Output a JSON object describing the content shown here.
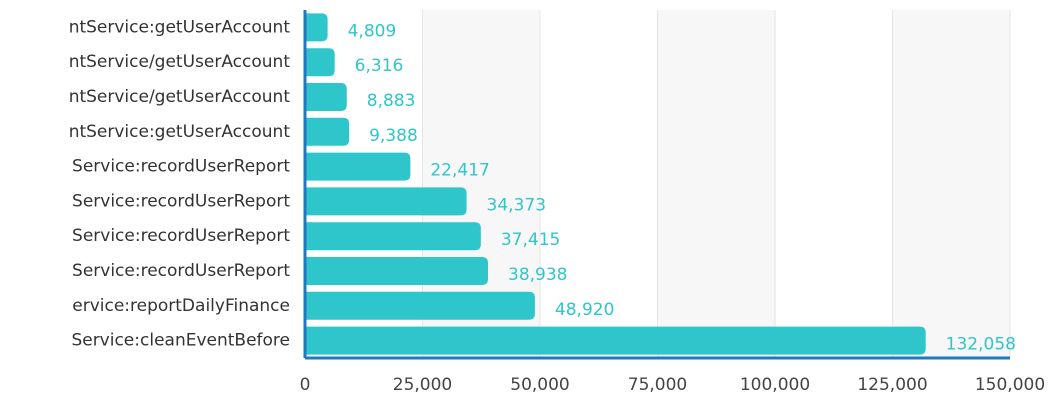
{
  "chart_data": {
    "type": "bar",
    "orientation": "horizontal",
    "categories": [
      "ntService:getUserAccount",
      "ntService/getUserAccount",
      "ntService/getUserAccount",
      "ntService:getUserAccount",
      "Service:recordUserReport",
      "Service:recordUserReport",
      "Service:recordUserReport",
      "Service:recordUserReport",
      "ervice:reportDailyFinance",
      "Service:cleanEventBefore"
    ],
    "values": [
      4809,
      6316,
      8883,
      9388,
      22417,
      34373,
      37415,
      38938,
      48920,
      132058
    ],
    "value_labels": [
      "4,809",
      "6,316",
      "8,883",
      "9,388",
      "22,417",
      "34,373",
      "37,415",
      "38,938",
      "48,920",
      "132,058"
    ],
    "color": "#2fc6cb",
    "xlim": [
      0,
      150000
    ],
    "xticks": [
      0,
      {
        "value": 25000,
        "label": "25,000"
      },
      {
        "value": 50000,
        "label": "50,000"
      },
      {
        "value": 75000,
        "label": "75,000"
      },
      {
        "value": 100000,
        "label": "100,000"
      },
      {
        "value": 125000,
        "label": "125,000"
      },
      {
        "value": 150000,
        "label": "150,000"
      }
    ],
    "grid": true
  }
}
